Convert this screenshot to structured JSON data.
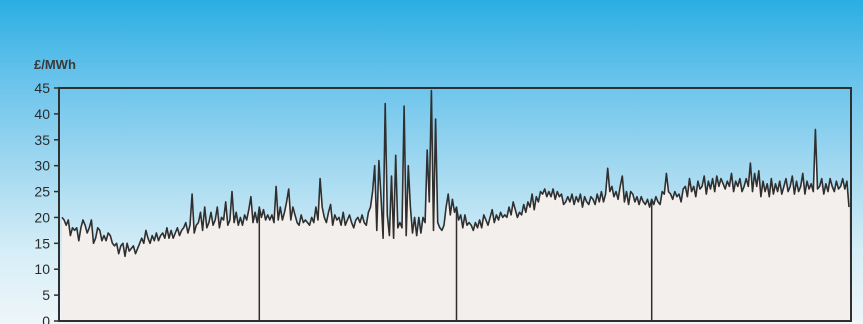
{
  "chart_data": {
    "type": "line",
    "title": "",
    "xlabel": "",
    "ylabel": "£/MWh",
    "ylim": [
      0,
      45
    ],
    "y_ticks": [
      "0",
      "5",
      "10",
      "15",
      "20",
      "25",
      "30",
      "35",
      "40",
      "45"
    ],
    "x_ticks": [],
    "grid": false,
    "legend": "none",
    "colors": {
      "line": "#2f2f2f",
      "fill": "#f2efec",
      "frame": "#2f2f2f",
      "background_top": "#2aaee2",
      "background_bottom": "#eef6f9"
    },
    "segment_dividers_at": [
      0.25,
      0.5,
      0.75
    ],
    "series": [
      {
        "values": [
          20,
          19.5,
          18.5,
          19.5,
          16.5,
          18,
          17.5,
          18,
          15.5,
          18,
          19.5,
          18.5,
          17,
          18,
          19.5,
          15,
          16,
          18,
          17.5,
          15.5,
          16.5,
          15.5,
          17,
          16.5,
          15,
          14.5,
          15,
          13,
          14.5,
          15,
          12.5,
          15,
          13.5,
          14,
          14.5,
          13,
          14,
          15,
          16,
          15,
          17.5,
          16,
          15,
          16.5,
          15.5,
          17,
          15.5,
          16.5,
          17,
          16,
          18,
          16,
          17.5,
          16,
          17,
          18,
          16.5,
          17.5,
          18,
          19,
          17,
          18.5,
          24.5,
          17,
          18.5,
          19,
          21,
          17.5,
          22,
          18,
          19,
          21,
          18.5,
          19.5,
          22,
          18,
          20,
          19.5,
          23,
          18.5,
          19.5,
          25,
          19,
          21,
          18.5,
          20,
          18.5,
          20.5,
          19.5,
          21.5,
          24,
          19,
          21,
          19,
          22,
          20,
          21.5,
          19.5,
          20.5,
          19.5,
          20.5,
          19,
          26,
          19.5,
          22,
          19.5,
          21,
          23,
          25.5,
          19.5,
          22,
          20.5,
          19,
          18.5,
          20.5,
          19,
          19.5,
          19,
          18.5,
          20,
          19,
          22,
          19.5,
          27.5,
          22,
          20,
          19,
          21,
          22.5,
          18.5,
          20.5,
          19.5,
          20,
          18.5,
          21,
          18.5,
          19.5,
          20.5,
          19,
          18,
          19.5,
          20,
          19,
          20.5,
          19,
          18.5,
          21,
          22,
          25,
          30,
          17.5,
          31,
          24,
          16,
          42,
          20.5,
          16.5,
          28,
          16,
          32,
          18,
          19,
          18,
          41.5,
          16.5,
          30,
          22,
          17,
          20,
          16.5,
          20,
          17,
          20,
          19,
          33,
          23,
          44.5,
          17.5,
          39,
          19,
          18,
          17.5,
          18.5,
          22,
          24.5,
          20.5,
          23.5,
          21,
          22,
          19.5,
          20.5,
          18,
          20.5,
          18.5,
          19,
          18.5,
          17.5,
          19,
          18,
          19.5,
          18,
          20.5,
          19.5,
          18.5,
          20,
          21.5,
          19,
          20.5,
          19.5,
          21,
          20,
          20.5,
          20,
          22,
          20.5,
          23,
          21.5,
          20,
          21,
          20.5,
          22.5,
          21,
          23,
          22,
          24.5,
          21.5,
          24,
          23,
          25,
          24.5,
          25.5,
          24,
          25,
          24,
          25.5,
          23.5,
          25,
          24,
          24.5,
          22.5,
          23,
          24,
          23,
          24.5,
          22.5,
          24,
          23,
          24.5,
          22,
          24,
          23,
          22.5,
          24,
          23.5,
          22.5,
          24.5,
          23,
          25,
          23,
          24.5,
          29.5,
          25,
          26,
          24,
          25,
          23.5,
          26,
          28,
          23,
          25,
          22.5,
          25,
          24.5,
          23,
          24,
          22.5,
          24,
          23,
          22.5,
          23.5,
          22,
          23.5,
          22.5,
          24,
          23,
          22.5,
          25,
          24.5,
          28.5,
          25,
          24.5,
          23.5,
          25,
          24,
          24.5,
          23,
          25.5,
          26,
          24,
          27.5,
          25,
          26,
          24,
          27,
          25.5,
          26,
          28,
          24.5,
          27,
          25.5,
          27.5,
          25,
          28,
          26,
          27.5,
          26.5,
          25.5,
          27,
          26,
          28.5,
          25,
          27,
          26,
          27.5,
          25,
          26,
          27.5,
          26,
          30.5,
          25,
          28.5,
          26,
          29,
          24,
          27,
          25,
          26.5,
          24,
          27.5,
          24.5,
          26.5,
          25,
          27,
          24.5,
          26,
          27.5,
          25,
          26,
          28,
          24.5,
          27,
          25,
          26,
          28.5,
          24.5,
          27,
          25.5,
          26.5,
          25,
          37,
          25.5,
          26,
          27.5,
          24.5,
          26.5,
          25,
          27.5,
          26,
          25,
          27,
          25.5,
          26,
          27.5,
          25.5,
          27,
          22
        ]
      }
    ]
  }
}
